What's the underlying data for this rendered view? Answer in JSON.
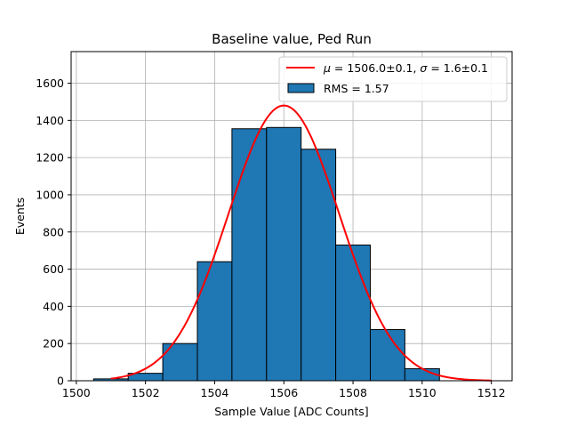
{
  "chart_data": {
    "type": "bar",
    "title": "Baseline value, Ped Run",
    "xlabel": "Sample Value [ADC Counts]",
    "ylabel": "Events",
    "xlim": [
      1499.85,
      1512.6
    ],
    "ylim": [
      0,
      1770
    ],
    "xticks": [
      1500,
      1502,
      1504,
      1506,
      1508,
      1510,
      1512
    ],
    "yticks": [
      0,
      200,
      400,
      600,
      800,
      1000,
      1200,
      1400,
      1600
    ],
    "grid": true,
    "legend_position": "top-right",
    "histogram": {
      "name": "RMS = 1.57",
      "color": "#1f77b4",
      "edge_color": "#000000",
      "bins": [
        {
          "x0": 1500.5,
          "x1": 1501.5,
          "count": 10
        },
        {
          "x0": 1501.5,
          "x1": 1502.5,
          "count": 40
        },
        {
          "x0": 1502.5,
          "x1": 1503.5,
          "count": 200
        },
        {
          "x0": 1503.5,
          "x1": 1504.5,
          "count": 640
        },
        {
          "x0": 1504.5,
          "x1": 1505.5,
          "count": 1355
        },
        {
          "x0": 1505.5,
          "x1": 1506.5,
          "count": 1362
        },
        {
          "x0": 1506.5,
          "x1": 1507.5,
          "count": 1245
        },
        {
          "x0": 1507.5,
          "x1": 1508.5,
          "count": 730
        },
        {
          "x0": 1508.5,
          "x1": 1509.5,
          "count": 275
        },
        {
          "x0": 1509.5,
          "x1": 1510.5,
          "count": 65
        }
      ]
    },
    "fit": {
      "name_parts": {
        "mu": "μ",
        "eq": " = ",
        "mu_value": "1506.0±0.1, ",
        "sigma": "σ",
        "sigma_value": "1.6±0.1"
      },
      "color": "#ff0000",
      "amplitude": 1480,
      "mean": 1506.0,
      "sigma": 1.6,
      "x_range": [
        1501.0,
        1512.0
      ]
    }
  }
}
